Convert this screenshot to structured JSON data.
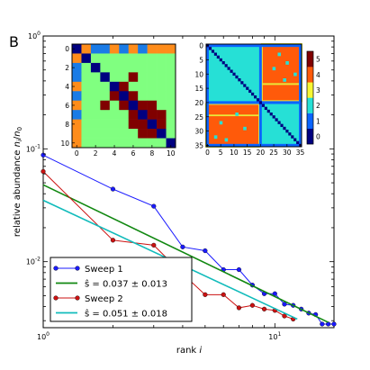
{
  "panel_label": "B",
  "chart_data": [
    {
      "type": "line",
      "scale": "log-log",
      "xlabel": "rank i",
      "ylabel": "relative abundance n_i/n_0",
      "xlim": [
        1,
        18
      ],
      "ylim": [
        0.0026,
        1
      ],
      "x_ticks": [
        {
          "value": 1,
          "label": "10^0"
        },
        {
          "value": 10,
          "label": "10^1"
        }
      ],
      "y_ticks": [
        {
          "value": 1,
          "label": "10^0"
        },
        {
          "value": 0.1,
          "label": "10^-1"
        },
        {
          "value": 0.01,
          "label": "10^-2"
        }
      ],
      "grid": false,
      "legend_position": "lower-left",
      "series": [
        {
          "name": "Sweep 1",
          "color": "#1a1aff",
          "marker": "circle",
          "points": [
            {
              "x": 1,
              "y": 0.088
            },
            {
              "x": 2,
              "y": 0.044
            },
            {
              "x": 3,
              "y": 0.031
            },
            {
              "x": 4,
              "y": 0.0135
            },
            {
              "x": 5,
              "y": 0.0125
            },
            {
              "x": 6,
              "y": 0.0085
            },
            {
              "x": 7,
              "y": 0.0085
            },
            {
              "x": 8,
              "y": 0.0062
            },
            {
              "x": 9,
              "y": 0.0052
            },
            {
              "x": 10,
              "y": 0.0052
            },
            {
              "x": 11,
              "y": 0.0042
            },
            {
              "x": 12,
              "y": 0.0041
            },
            {
              "x": 13,
              "y": 0.0038
            },
            {
              "x": 14,
              "y": 0.0035
            },
            {
              "x": 15,
              "y": 0.0034
            },
            {
              "x": 16,
              "y": 0.0028
            },
            {
              "x": 17,
              "y": 0.0028
            },
            {
              "x": 18,
              "y": 0.0028
            }
          ]
        },
        {
          "name": "ŝ = 0.037 ± 0.013",
          "color": "#118811",
          "fit": true,
          "points": [
            {
              "x": 1,
              "y": 0.048
            },
            {
              "x": 17,
              "y": 0.0029
            }
          ]
        },
        {
          "name": "Sweep 2",
          "color": "#cc1111",
          "marker": "circle",
          "points": [
            {
              "x": 1,
              "y": 0.063
            },
            {
              "x": 2,
              "y": 0.0155
            },
            {
              "x": 3,
              "y": 0.014
            },
            {
              "x": 4,
              "y": 0.0078
            },
            {
              "x": 5,
              "y": 0.0051
            },
            {
              "x": 6,
              "y": 0.0051
            },
            {
              "x": 7,
              "y": 0.0039
            },
            {
              "x": 8,
              "y": 0.0041
            },
            {
              "x": 9,
              "y": 0.0038
            },
            {
              "x": 10,
              "y": 0.0037
            },
            {
              "x": 11,
              "y": 0.0033
            },
            {
              "x": 12,
              "y": 0.0031
            }
          ]
        },
        {
          "name": "ŝ = 0.051 ± 0.018",
          "color": "#11bbbb",
          "fit": true,
          "points": [
            {
              "x": 1,
              "y": 0.035
            },
            {
              "x": 12.5,
              "y": 0.0031
            }
          ]
        }
      ]
    },
    {
      "type": "heatmap",
      "title": "",
      "size": 11,
      "x_ticks": [
        "0",
        "2",
        "4",
        "6",
        "8",
        "10"
      ],
      "y_ticks": [
        "0",
        "2",
        "4",
        "6",
        "8",
        "10"
      ],
      "colors": {
        "1": "#1a7be6",
        "2": "#80ff80",
        "3": "#ff8c1a",
        "4": "#000080",
        "5": "#800000"
      },
      "matrix": [
        [
          4,
          3,
          1,
          1,
          3,
          1,
          3,
          1,
          3,
          3,
          3
        ],
        [
          3,
          4,
          2,
          2,
          2,
          2,
          2,
          2,
          2,
          2,
          2
        ],
        [
          1,
          2,
          4,
          2,
          2,
          2,
          2,
          2,
          2,
          2,
          2
        ],
        [
          1,
          2,
          2,
          4,
          2,
          2,
          5,
          2,
          2,
          2,
          2
        ],
        [
          3,
          2,
          2,
          2,
          4,
          5,
          2,
          2,
          2,
          2,
          2
        ],
        [
          1,
          2,
          2,
          2,
          5,
          4,
          5,
          2,
          2,
          2,
          2
        ],
        [
          3,
          2,
          2,
          5,
          2,
          5,
          4,
          5,
          5,
          2,
          2
        ],
        [
          1,
          2,
          2,
          2,
          2,
          2,
          5,
          4,
          5,
          5,
          2
        ],
        [
          3,
          2,
          2,
          2,
          2,
          2,
          5,
          5,
          4,
          5,
          2
        ],
        [
          3,
          2,
          2,
          2,
          2,
          2,
          2,
          5,
          5,
          4,
          2
        ],
        [
          3,
          2,
          2,
          2,
          2,
          2,
          2,
          2,
          2,
          2,
          4
        ]
      ]
    },
    {
      "type": "heatmap",
      "title": "",
      "size": 36,
      "x_ticks": [
        "0",
        "5",
        "10",
        "15",
        "20",
        "25",
        "30",
        "35"
      ],
      "y_ticks": [
        "0",
        "5",
        "10",
        "15",
        "20",
        "25",
        "30",
        "35"
      ],
      "colorbar": {
        "ticks": [
          "0",
          "1",
          "2",
          "3",
          "4",
          "5"
        ],
        "range": [
          0,
          5
        ]
      },
      "regions": [
        {
          "rows": [
            0,
            35
          ],
          "cols": [
            0,
            35
          ],
          "value": 2
        },
        {
          "rows": [
            21,
            35
          ],
          "cols": [
            0,
            19
          ],
          "value": 4
        },
        {
          "rows": [
            0,
            19
          ],
          "cols": [
            21,
            35
          ],
          "value": 4
        }
      ]
    }
  ]
}
